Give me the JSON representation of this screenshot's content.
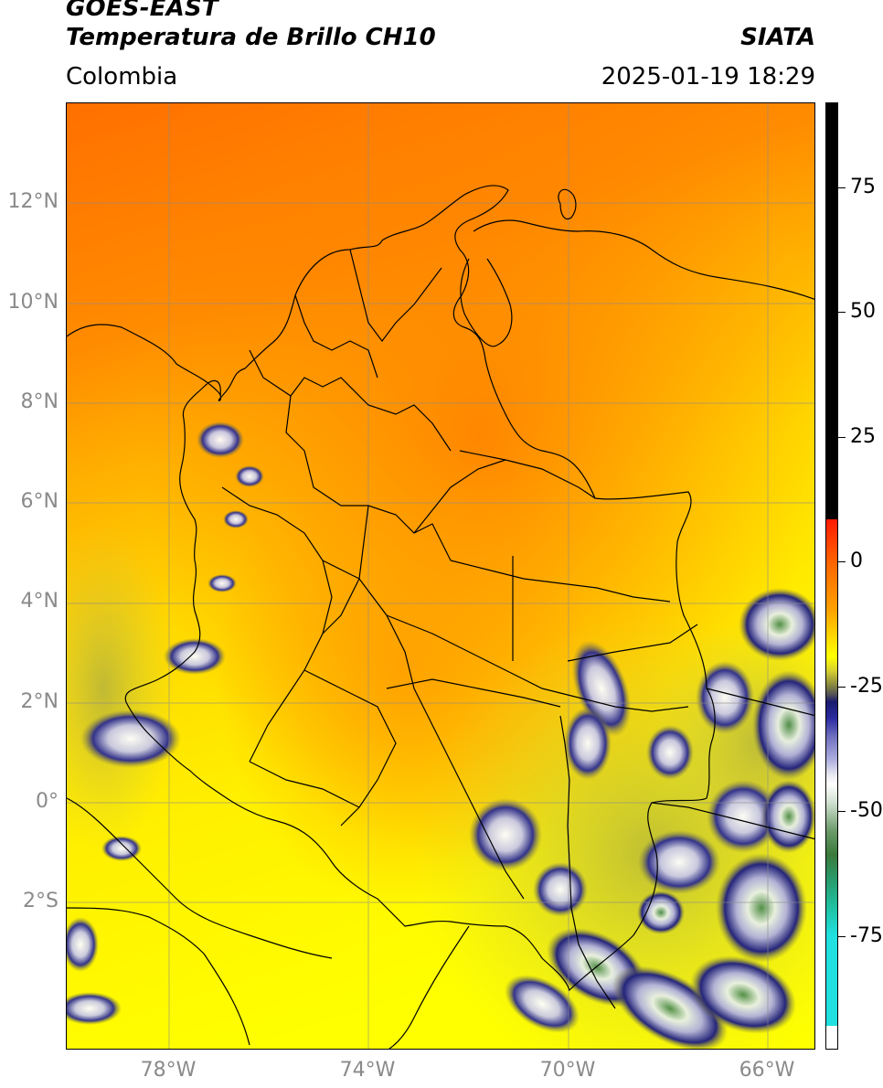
{
  "header": {
    "satellite": "GOES-EAST",
    "product": "Temperatura de Brillo CH10",
    "organization": "SIATA",
    "region": "Colombia",
    "datetime": "2025-01-19 18:29"
  },
  "map": {
    "lat_labels": [
      "12°N",
      "10°N",
      "8°N",
      "6°N",
      "4°N",
      "2°N",
      "0°",
      "2°S"
    ],
    "lon_labels": [
      "78°W",
      "74°W",
      "70°W",
      "66°W"
    ]
  },
  "colorbar": {
    "tick_labels": [
      "75",
      "50",
      "25",
      "0",
      "-25",
      "-50",
      "-75"
    ],
    "colors": {
      "warm": "#ff7a00",
      "mid": "#ffd000",
      "cold": "#ffff00",
      "cloud_blue": "#1a1a80",
      "cloud_white": "#ffffff",
      "cloud_green": "#3a7a3a",
      "cyan": "#20e0e0"
    }
  }
}
